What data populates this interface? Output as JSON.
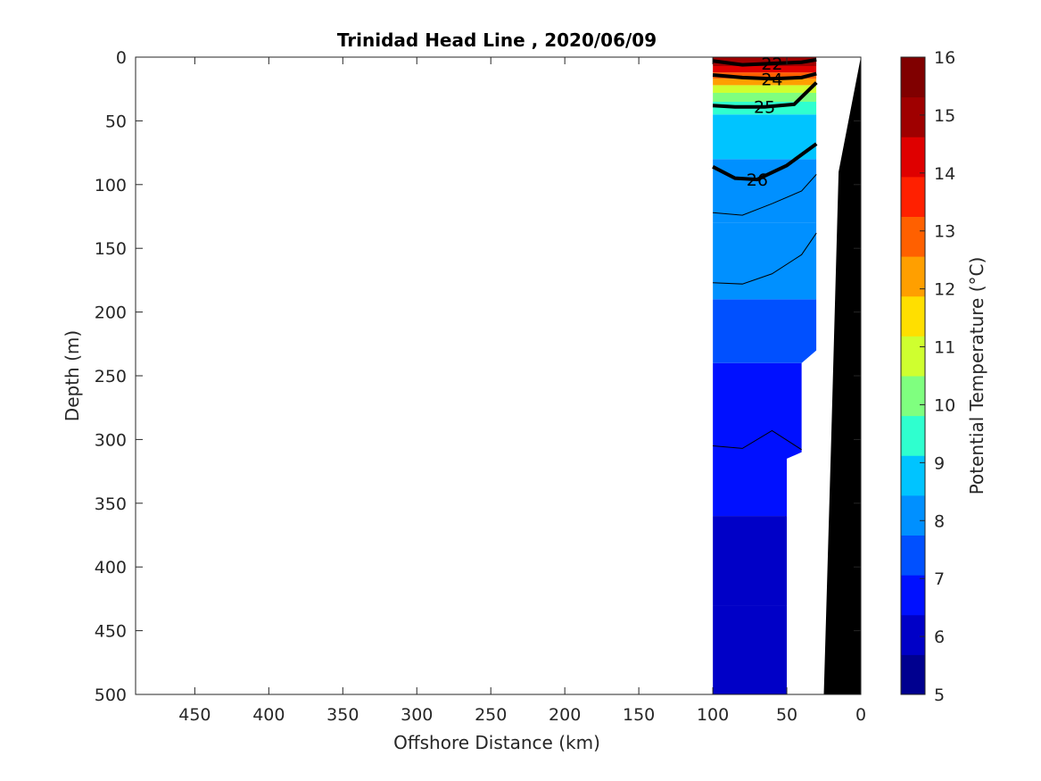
{
  "chart_data": {
    "type": "contour",
    "title": "Trinidad Head Line , 2020/06/09",
    "xlabel": "Offshore Distance (km)",
    "ylabel": "Depth (m)",
    "xlim": [
      490,
      0
    ],
    "x_direction": "reversed",
    "ylim": [
      0,
      500
    ],
    "y_direction": "reversed",
    "x_ticks": [
      450,
      400,
      350,
      300,
      250,
      200,
      150,
      100,
      50,
      0
    ],
    "y_ticks": [
      0,
      50,
      100,
      150,
      200,
      250,
      300,
      350,
      400,
      450,
      500
    ],
    "colorbar": {
      "label": "Potential Temperature (°C)",
      "range": [
        5,
        16
      ],
      "ticks": [
        5,
        6,
        7,
        8,
        9,
        10,
        11,
        12,
        13,
        14,
        15,
        16
      ],
      "colors": [
        "#00008f",
        "#0000c7",
        "#0010ff",
        "#0050ff",
        "#0090ff",
        "#00c4ff",
        "#2fffcf",
        "#7fff7f",
        "#cfff2f",
        "#ffdf00",
        "#ff9f00",
        "#ff6000",
        "#ff2000",
        "#df0000",
        "#9f0000",
        "#800000"
      ]
    },
    "temperature_bands": [
      {
        "temp_c": 5.75,
        "depth_range": [
          430,
          500
        ]
      },
      {
        "temp_c": 6.25,
        "depth_range": [
          360,
          430
        ]
      },
      {
        "temp_c": 6.75,
        "depth_range": [
          240,
          360
        ]
      },
      {
        "temp_c": 7.25,
        "depth_range": [
          190,
          240
        ]
      },
      {
        "temp_c": 7.75,
        "depth_range": [
          130,
          190
        ]
      },
      {
        "temp_c": 8.25,
        "depth_range": [
          80,
          130
        ]
      },
      {
        "temp_c": 8.75,
        "depth_range": [
          45,
          80
        ]
      },
      {
        "temp_c": 9.25,
        "depth_range": [
          35,
          45
        ]
      },
      {
        "temp_c": 10.0,
        "depth_range": [
          28,
          35
        ]
      },
      {
        "temp_c": 11.0,
        "depth_range": [
          22,
          28
        ]
      },
      {
        "temp_c": 12.0,
        "depth_range": [
          17,
          22
        ]
      },
      {
        "temp_c": 13.0,
        "depth_range": [
          12,
          17
        ]
      },
      {
        "temp_c": 14.0,
        "depth_range": [
          7,
          12
        ]
      },
      {
        "temp_c": 15.0,
        "depth_range": [
          0,
          7
        ]
      }
    ],
    "data_section": {
      "x_range_km": [
        100,
        30
      ],
      "bottom_profile": [
        {
          "x": 100,
          "depth": 500
        },
        {
          "x": 50,
          "depth": 500
        },
        {
          "x": 50,
          "depth": 315
        },
        {
          "x": 40,
          "depth": 310
        },
        {
          "x": 40,
          "depth": 240
        },
        {
          "x": 30,
          "depth": 230
        },
        {
          "x": 30,
          "depth": 0
        }
      ]
    },
    "density_contours": [
      {
        "label": "22",
        "bold": true,
        "points": [
          [
            100,
            3
          ],
          [
            80,
            6
          ],
          [
            60,
            5
          ],
          [
            40,
            4
          ],
          [
            30,
            2
          ]
        ]
      },
      {
        "label": "24",
        "bold": true,
        "points": [
          [
            100,
            14
          ],
          [
            80,
            16
          ],
          [
            60,
            17
          ],
          [
            40,
            16
          ],
          [
            30,
            13
          ]
        ]
      },
      {
        "label": "25",
        "bold": true,
        "points": [
          [
            100,
            38
          ],
          [
            85,
            39
          ],
          [
            65,
            39
          ],
          [
            45,
            37
          ],
          [
            30,
            20
          ]
        ]
      },
      {
        "label": "26",
        "bold": true,
        "points": [
          [
            100,
            86
          ],
          [
            85,
            95
          ],
          [
            70,
            96
          ],
          [
            50,
            85
          ],
          [
            30,
            68
          ]
        ]
      },
      {
        "label": "",
        "bold": false,
        "points": [
          [
            100,
            122
          ],
          [
            80,
            124
          ],
          [
            60,
            115
          ],
          [
            40,
            105
          ],
          [
            30,
            92
          ]
        ]
      },
      {
        "label": "",
        "bold": false,
        "points": [
          [
            100,
            177
          ],
          [
            80,
            178
          ],
          [
            60,
            170
          ],
          [
            40,
            155
          ],
          [
            30,
            138
          ]
        ]
      },
      {
        "label": "",
        "bold": false,
        "points": [
          [
            100,
            305
          ],
          [
            80,
            307
          ],
          [
            60,
            293
          ],
          [
            40,
            308
          ]
        ]
      }
    ],
    "bathymetry": {
      "fill": "#000000",
      "points": [
        [
          0,
          0
        ],
        [
          0,
          500
        ],
        [
          25,
          500
        ],
        [
          20,
          300
        ],
        [
          15,
          90
        ],
        [
          0,
          0
        ]
      ]
    }
  }
}
